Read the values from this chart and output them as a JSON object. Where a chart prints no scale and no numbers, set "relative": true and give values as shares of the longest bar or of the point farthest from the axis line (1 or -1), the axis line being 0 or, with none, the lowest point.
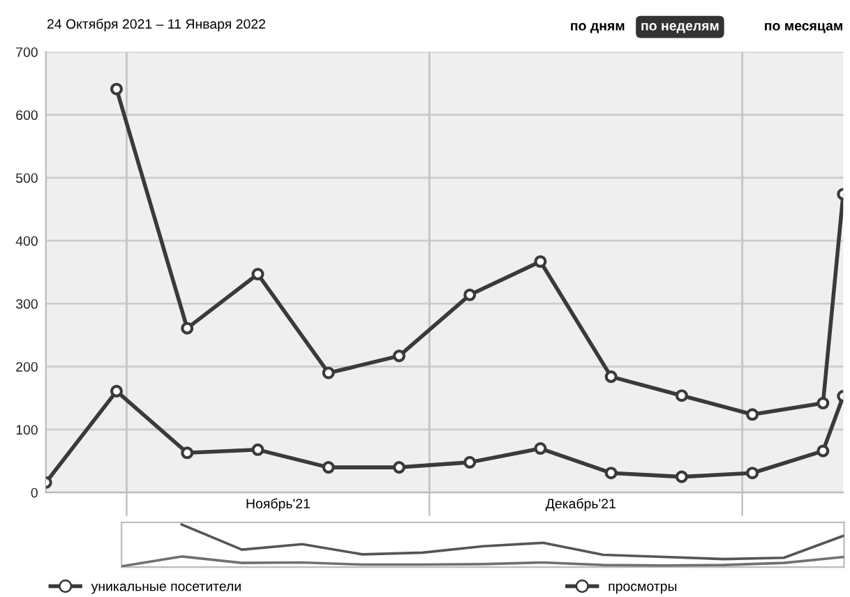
{
  "chart_data": [
    {
      "type": "line",
      "title": "24 Октября 2021 – 11 Января 2022",
      "annotations": [
        "по дням",
        "по неделям",
        "по месяцам"
      ],
      "x": [
        "2021-10-24",
        "2021-10-31",
        "2021-11-07",
        "2021-11-14",
        "2021-11-21",
        "2021-11-28",
        "2021-12-05",
        "2021-12-12",
        "2021-12-19",
        "2021-12-26",
        "2022-01-02",
        "2022-01-09",
        "2022-01-11"
      ],
      "series": [
        {
          "name": "уникальные посетители",
          "color": "#3a3a3a",
          "values": [
            16,
            161,
            63,
            68,
            40,
            40,
            48,
            70,
            31,
            25,
            31,
            66,
            153
          ]
        },
        {
          "name": "просмотры",
          "color": "#3a3a3a",
          "values": [
            null,
            641,
            261,
            347,
            190,
            217,
            314,
            367,
            184,
            154,
            124,
            142,
            474
          ]
        }
      ],
      "xlim": [
        "2021-10-24",
        "2022-01-11"
      ],
      "xticks": [
        {
          "value": "2021-11-01",
          "label": null
        },
        {
          "value": "2021-11-16",
          "label": "Ноябрь'21"
        },
        {
          "value": "2021-12-01",
          "label": null
        },
        {
          "value": "2021-12-16",
          "label": "Декабрь'21"
        },
        {
          "value": "2022-01-01",
          "label": null
        }
      ],
      "ylim": [
        0,
        700
      ],
      "yticks": [
        0,
        100,
        200,
        300,
        400,
        500,
        600,
        700
      ],
      "grid": true,
      "marker": "circle",
      "line_style": "solid",
      "legend": "bottom"
    },
    {
      "type": "line",
      "relative": true,
      "categories": [
        null,
        null,
        null,
        null,
        null,
        null,
        null,
        null,
        null,
        null,
        null,
        null,
        null
      ],
      "series": [
        {
          "color": "#707070",
          "values": [
            0.02,
            0.25,
            0.1,
            0.11,
            0.06,
            0.06,
            0.07,
            0.11,
            0.05,
            0.04,
            0.05,
            0.1,
            0.24
          ]
        },
        {
          "color": "#555555",
          "values": [
            null,
            1,
            0.41,
            0.54,
            0.3,
            0.34,
            0.49,
            0.57,
            0.29,
            0.24,
            0.19,
            0.22,
            0.74
          ]
        }
      ],
      "marker": "none",
      "line_style": "solid",
      "legend": false
    }
  ]
}
